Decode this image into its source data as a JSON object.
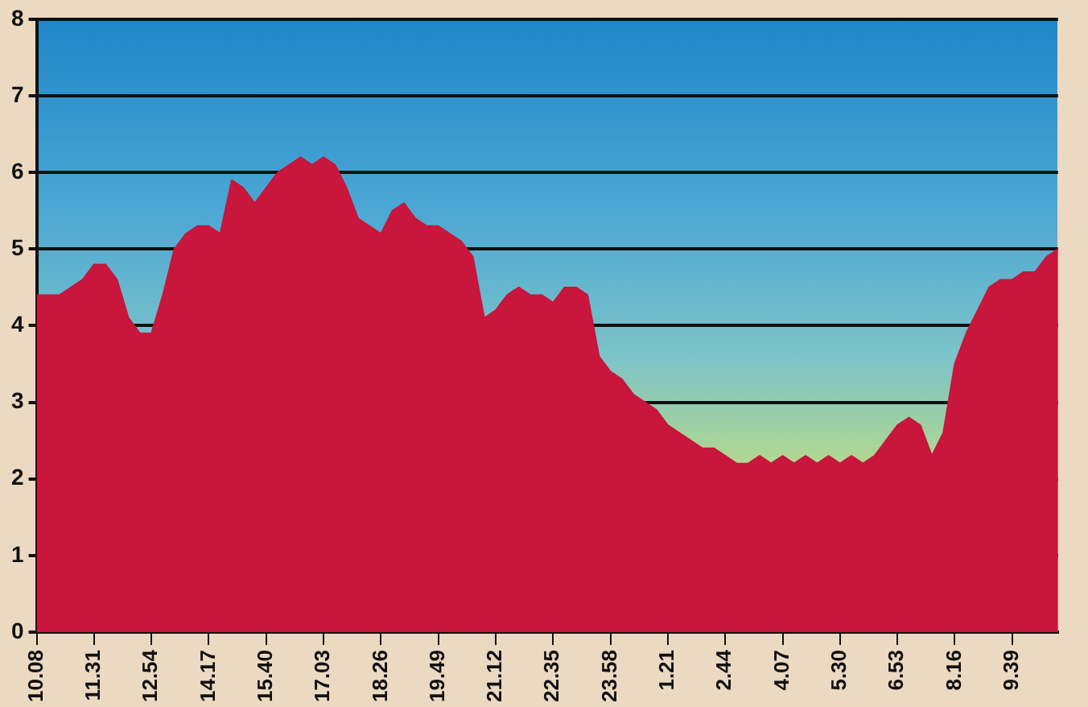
{
  "chart_data": {
    "type": "area",
    "categories": [
      "10.08",
      null,
      null,
      null,
      null,
      "11.31",
      null,
      null,
      null,
      null,
      "12.54",
      null,
      null,
      null,
      null,
      "14.17",
      null,
      null,
      null,
      null,
      "15.40",
      null,
      null,
      null,
      null,
      "17.03",
      null,
      null,
      null,
      null,
      "18.26",
      null,
      null,
      null,
      null,
      "19.49",
      null,
      null,
      null,
      null,
      "21.12",
      null,
      null,
      null,
      null,
      "22.35",
      null,
      null,
      null,
      null,
      "23.58",
      null,
      null,
      null,
      null,
      "1.21",
      null,
      null,
      null,
      null,
      "2.44",
      null,
      null,
      null,
      null,
      "4.07",
      null,
      null,
      null,
      null,
      "5.30",
      null,
      null,
      null,
      null,
      "6.53",
      null,
      null,
      null,
      null,
      "8.16",
      null,
      null,
      null,
      null,
      "9.39",
      null,
      null,
      null,
      null
    ],
    "values": [
      4.4,
      4.4,
      4.4,
      4.5,
      4.6,
      4.8,
      4.8,
      4.6,
      4.1,
      3.9,
      3.9,
      4.4,
      5.0,
      5.2,
      5.3,
      5.3,
      5.2,
      5.9,
      5.8,
      5.6,
      5.8,
      6.0,
      6.1,
      6.2,
      6.1,
      6.2,
      6.1,
      5.8,
      5.4,
      5.3,
      5.2,
      5.5,
      5.6,
      5.4,
      5.3,
      5.3,
      5.2,
      5.1,
      4.9,
      4.1,
      4.2,
      4.4,
      4.5,
      4.4,
      4.4,
      4.3,
      4.5,
      4.5,
      4.4,
      3.6,
      3.4,
      3.3,
      3.1,
      3.0,
      2.9,
      2.7,
      2.6,
      2.5,
      2.4,
      2.4,
      2.3,
      2.2,
      2.2,
      2.3,
      2.2,
      2.3,
      2.2,
      2.3,
      2.2,
      2.3,
      2.2,
      2.3,
      2.2,
      2.3,
      2.5,
      2.7,
      2.8,
      2.7,
      2.3,
      2.6,
      3.5,
      3.9,
      4.2,
      4.5,
      4.6,
      4.6,
      4.7,
      4.7,
      4.9,
      5.0
    ],
    "color": "#c8163c",
    "ylim": [
      0,
      8
    ],
    "yticks": [
      0,
      1,
      2,
      3,
      4,
      5,
      6,
      7,
      8
    ],
    "grid": "y",
    "legend": false
  }
}
